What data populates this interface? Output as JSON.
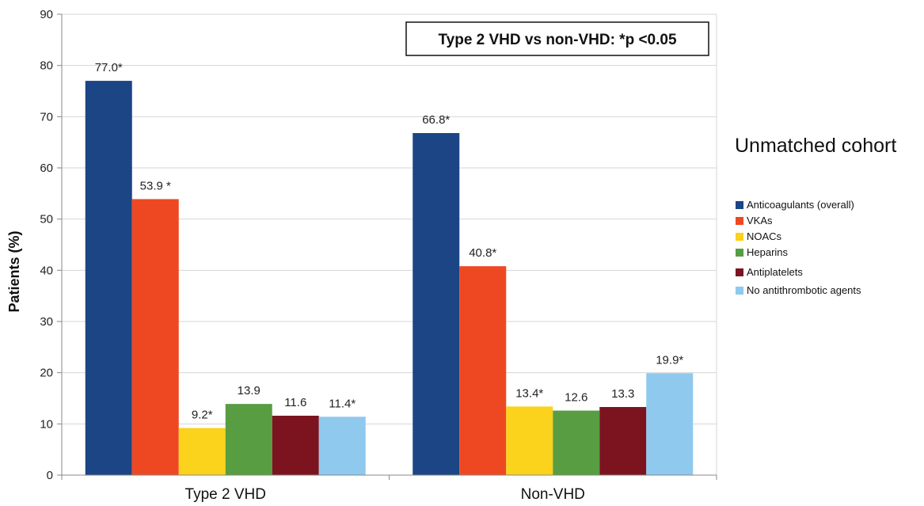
{
  "chart_data": {
    "type": "bar",
    "categories": [
      "Type 2 VHD",
      "Non-VHD"
    ],
    "ylabel": "Patients (%)",
    "xlabel": "",
    "ylim": [
      0,
      90
    ],
    "yticks": [
      0,
      10,
      20,
      30,
      40,
      50,
      60,
      70,
      80,
      90
    ],
    "grid": true,
    "legend_position": "right",
    "subtitle": "Unmatched cohort",
    "annotation": "Type 2 VHD vs non-VHD: *p <0.05",
    "series": [
      {
        "name": "Anticoagulants (overall)",
        "color": "#1b4585",
        "values": [
          77.0,
          66.8
        ],
        "labels": [
          "77.0*",
          "66.8*"
        ]
      },
      {
        "name": "VKAs",
        "color": "#ee4822",
        "values": [
          53.9,
          40.8
        ],
        "labels": [
          "53.9 *",
          "40.8*"
        ]
      },
      {
        "name": "NOACs",
        "color": "#fbd21c",
        "values": [
          9.2,
          13.4
        ],
        "labels": [
          "9.2*",
          "13.4*"
        ]
      },
      {
        "name": "Heparins",
        "color": "#589d41",
        "values": [
          13.9,
          12.6
        ],
        "labels": [
          "13.9",
          "12.6"
        ]
      },
      {
        "name": "Antiplatelets",
        "color": "#7c1420",
        "values": [
          11.6,
          13.3
        ],
        "labels": [
          "11.6",
          "13.3"
        ]
      },
      {
        "name": "No antithrombotic agents",
        "color": "#8fc9ee",
        "values": [
          11.4,
          19.9
        ],
        "labels": [
          "11.4*",
          "19.9*"
        ]
      }
    ]
  }
}
